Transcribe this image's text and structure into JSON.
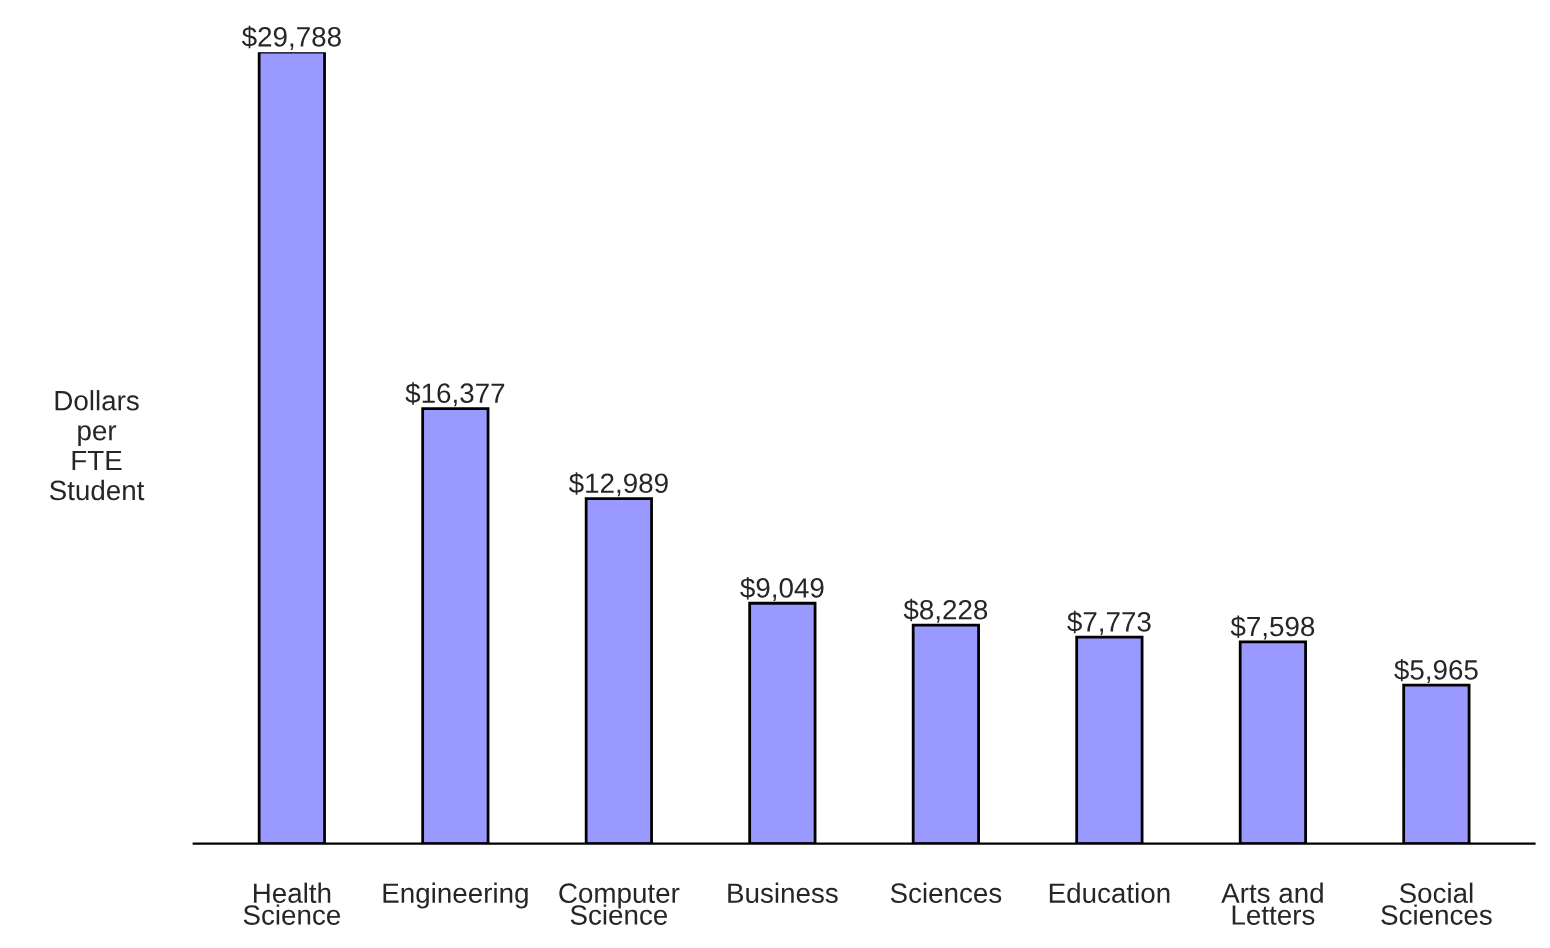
{
  "chart_data": {
    "type": "bar",
    "ylabel": "Dollars\nper\nFTE\nStudent",
    "categories": [
      "Health\nScience",
      "Engineering",
      "Computer\nScience",
      "Business",
      "Sciences",
      "Education",
      "Arts and\nLetters",
      "Social\nSciences"
    ],
    "values": [
      29788,
      16377,
      12989,
      9049,
      8228,
      7773,
      7598,
      5965
    ],
    "value_labels": [
      "$29,788",
      "$16,377",
      "$12,989",
      "$9,049",
      "$8,228",
      "$7,773",
      "$7,598",
      "$5,965"
    ],
    "color": "#9999ff",
    "grid": false,
    "legend": false
  }
}
